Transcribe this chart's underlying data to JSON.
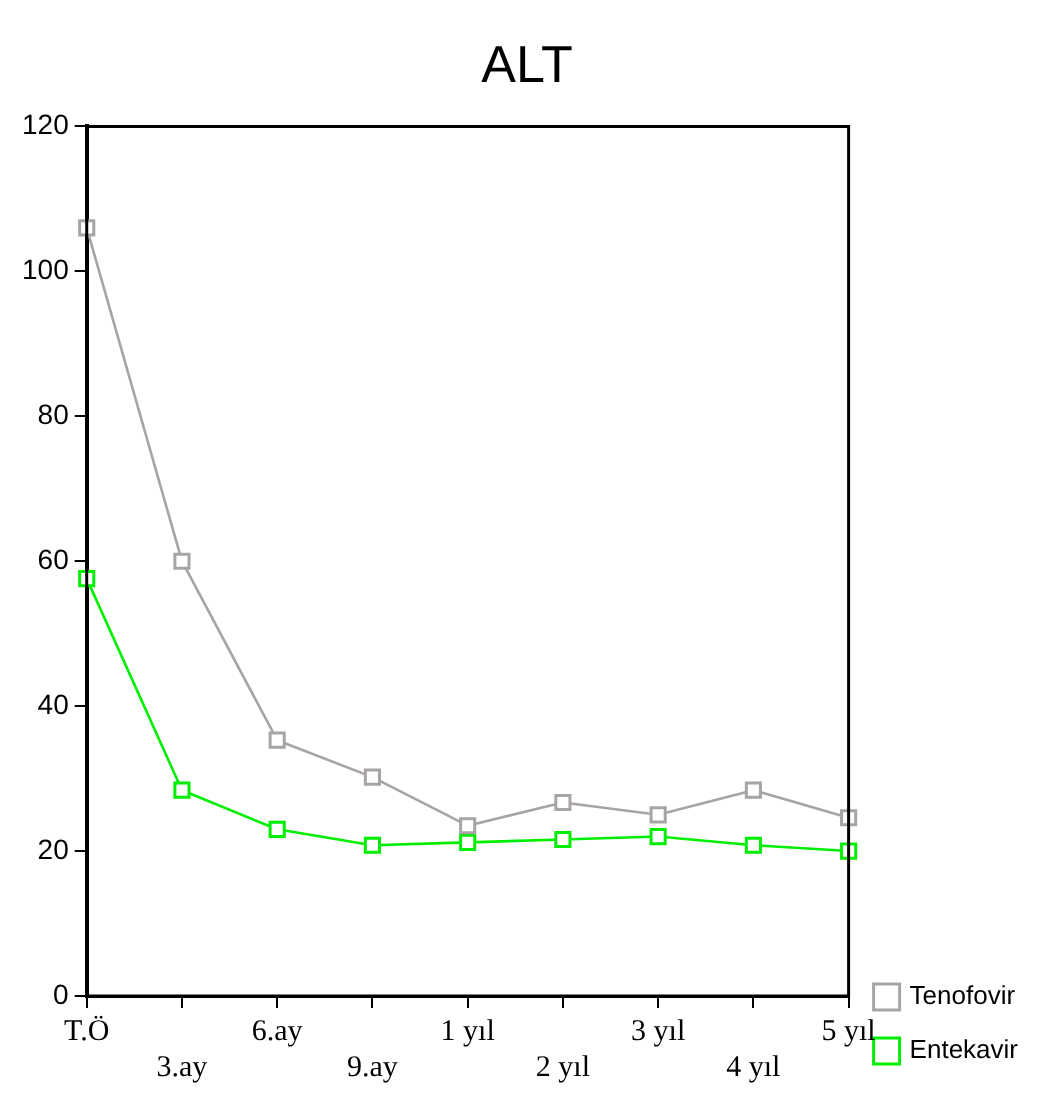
{
  "chart_data": {
    "type": "line",
    "title": "ALT",
    "categories": [
      "T.Ö",
      "3.ay",
      "6.ay",
      "9.ay",
      "1 yıl",
      "2 yıl",
      "3 yıl",
      "4 yıl",
      "5 yıl"
    ],
    "series": [
      {
        "name": "Tenofovir",
        "color": "#a8a4a4",
        "values": [
          106,
          60,
          35.3,
          30.2,
          23.5,
          26.7,
          25,
          28.4,
          24.6
        ]
      },
      {
        "name": "Entekavir",
        "color": "#00ee00",
        "values": [
          57.6,
          28.4,
          23,
          20.8,
          21.2,
          21.6,
          22,
          20.8,
          20
        ]
      }
    ],
    "ylim": [
      0,
      120
    ],
    "yticks": [
      0,
      20,
      40,
      60,
      80,
      100,
      120
    ],
    "grid": false,
    "legend": "bottom right",
    "marker": "square",
    "line_style": "solid"
  }
}
